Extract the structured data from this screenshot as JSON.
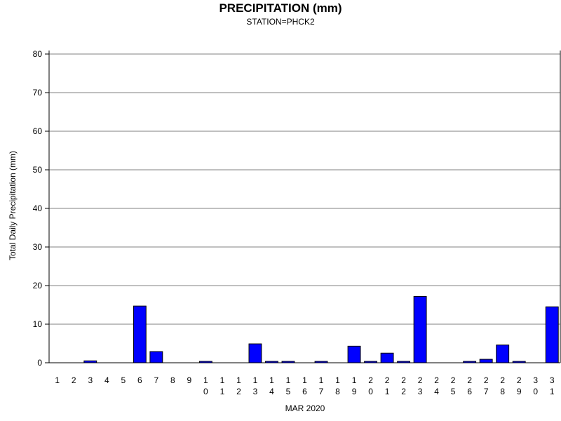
{
  "chart_data": {
    "type": "bar",
    "title": "PRECIPITATION (mm)",
    "subtitle": "STATION=PHCK2",
    "xlabel": "MAR 2020",
    "ylabel": "Total Daily Precipitation (mm)",
    "ylim": [
      0,
      80
    ],
    "yticks": [
      0,
      10,
      20,
      30,
      40,
      50,
      60,
      70,
      80
    ],
    "grid": true,
    "bar_color": "#0000ff",
    "categories": [
      "1",
      "2",
      "3",
      "4",
      "5",
      "6",
      "7",
      "8",
      "9",
      "10",
      "11",
      "12",
      "13",
      "14",
      "15",
      "16",
      "17",
      "18",
      "19",
      "20",
      "21",
      "22",
      "23",
      "24",
      "25",
      "26",
      "27",
      "28",
      "29",
      "30",
      "31"
    ],
    "values": [
      0,
      0,
      0.5,
      0,
      0,
      14.7,
      2.9,
      0,
      0,
      0.1,
      0,
      0,
      4.9,
      0.1,
      0.1,
      0,
      0.1,
      0,
      4.3,
      0.3,
      2.5,
      0.1,
      17.2,
      0,
      0,
      0.1,
      0.9,
      4.6,
      0.1,
      0,
      14.5
    ]
  }
}
